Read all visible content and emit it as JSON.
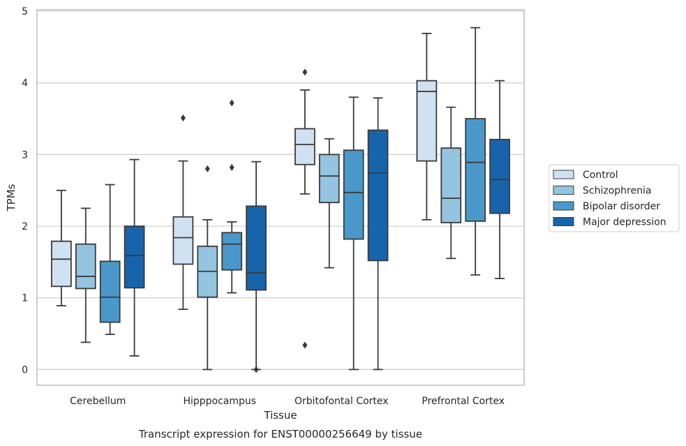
{
  "chart_data": {
    "type": "box",
    "xlabel": "Tissue",
    "ylabel": "TPMs",
    "caption": "Transcript expression for ENST00000256649 by tissue",
    "ylim": [
      -0.22,
      5.02
    ],
    "yticks": [
      0,
      1,
      2,
      3,
      4,
      5
    ],
    "grid": true,
    "legend_position": "right",
    "categories": [
      "Cerebellum",
      "Hipppocampus",
      "Orbitofontal Cortex",
      "Prefrontal Cortex"
    ],
    "series": [
      {
        "name": "Control",
        "color": "#d0e1f2",
        "boxes": [
          {
            "whisker_low": 0.89,
            "q1": 1.16,
            "median": 1.54,
            "q3": 1.79,
            "whisker_high": 2.5,
            "outliers": []
          },
          {
            "whisker_low": 0.84,
            "q1": 1.47,
            "median": 1.84,
            "q3": 2.13,
            "whisker_high": 2.91,
            "outliers": [
              3.51
            ]
          },
          {
            "whisker_low": 2.45,
            "q1": 2.86,
            "median": 3.14,
            "q3": 3.36,
            "whisker_high": 3.9,
            "outliers": [
              4.15,
              0.34
            ]
          },
          {
            "whisker_low": 2.09,
            "q1": 2.91,
            "median": 3.88,
            "q3": 4.03,
            "whisker_high": 4.69,
            "outliers": []
          }
        ]
      },
      {
        "name": "Schizophrenia",
        "color": "#94c4df",
        "boxes": [
          {
            "whisker_low": 0.38,
            "q1": 1.13,
            "median": 1.3,
            "q3": 1.75,
            "whisker_high": 2.25,
            "outliers": []
          },
          {
            "whisker_low": 0.0,
            "q1": 1.01,
            "median": 1.37,
            "q3": 1.72,
            "whisker_high": 2.09,
            "outliers": [
              2.8
            ]
          },
          {
            "whisker_low": 1.42,
            "q1": 2.33,
            "median": 2.7,
            "q3": 3.0,
            "whisker_high": 3.22,
            "outliers": []
          },
          {
            "whisker_low": 1.55,
            "q1": 2.05,
            "median": 2.39,
            "q3": 3.09,
            "whisker_high": 3.66,
            "outliers": []
          }
        ]
      },
      {
        "name": "Bipolar disorder",
        "color": "#4a98c9",
        "boxes": [
          {
            "whisker_low": 0.49,
            "q1": 0.66,
            "median": 1.01,
            "q3": 1.51,
            "whisker_high": 2.58,
            "outliers": []
          },
          {
            "whisker_low": 1.07,
            "q1": 1.39,
            "median": 1.75,
            "q3": 1.91,
            "whisker_high": 2.06,
            "outliers": [
              2.82,
              3.72
            ]
          },
          {
            "whisker_low": 0.0,
            "q1": 1.82,
            "median": 2.47,
            "q3": 3.06,
            "whisker_high": 3.8,
            "outliers": []
          },
          {
            "whisker_low": 1.32,
            "q1": 2.07,
            "median": 2.89,
            "q3": 3.5,
            "whisker_high": 4.77,
            "outliers": []
          }
        ]
      },
      {
        "name": "Major depression",
        "color": "#1764ab",
        "boxes": [
          {
            "whisker_low": 0.19,
            "q1": 1.14,
            "median": 1.59,
            "q3": 2.0,
            "whisker_high": 2.93,
            "outliers": []
          },
          {
            "whisker_low": 0.0,
            "q1": 1.11,
            "median": 1.35,
            "q3": 2.28,
            "whisker_high": 2.9,
            "outliers": [
              0.0
            ]
          },
          {
            "whisker_low": 0.0,
            "q1": 1.52,
            "median": 2.74,
            "q3": 3.34,
            "whisker_high": 3.79,
            "outliers": []
          },
          {
            "whisker_low": 1.27,
            "q1": 2.18,
            "median": 2.65,
            "q3": 3.21,
            "whisker_high": 4.03,
            "outliers": []
          }
        ]
      }
    ]
  }
}
